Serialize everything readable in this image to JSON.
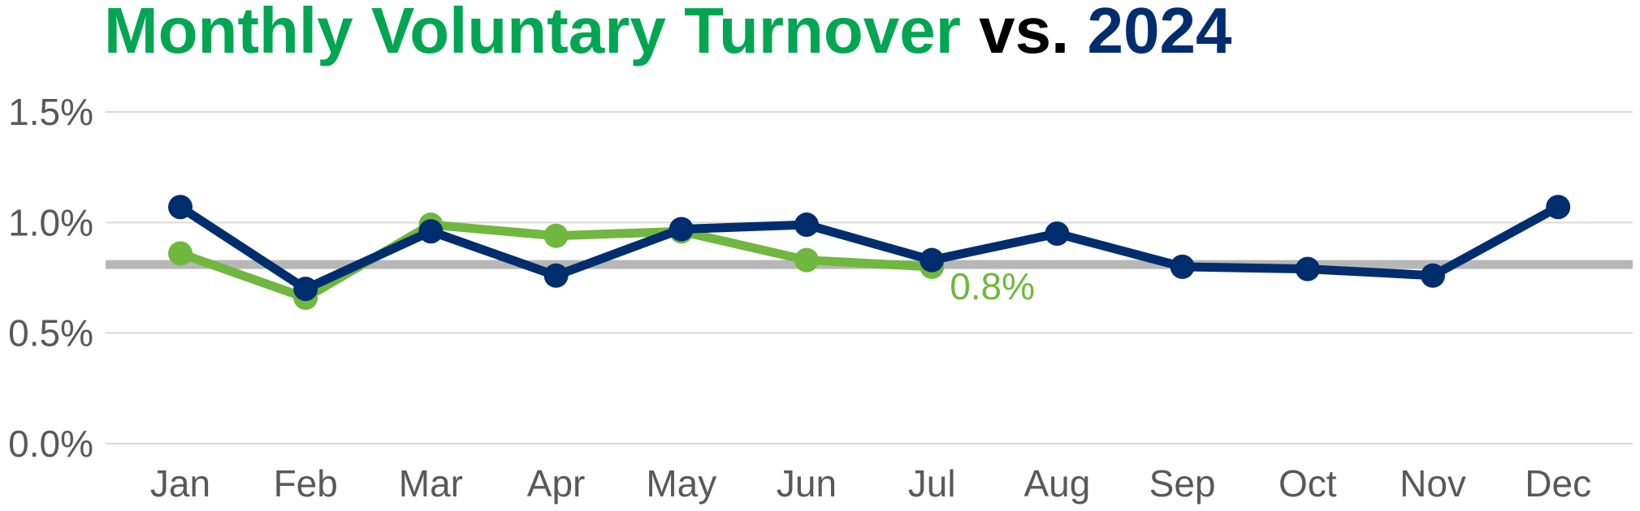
{
  "chart_data": {
    "type": "line",
    "title": {
      "part1": "Monthly Voluntary Turnover",
      "part2": " vs. ",
      "part3": "2024"
    },
    "categories": [
      "Jan",
      "Feb",
      "Mar",
      "Apr",
      "May",
      "Jun",
      "Jul",
      "Aug",
      "Sep",
      "Oct",
      "Nov",
      "Dec"
    ],
    "y_ticks": [
      "0.0%",
      "0.5%",
      "1.0%",
      "1.5%"
    ],
    "ylim": [
      0,
      1.5
    ],
    "y_tick_values": [
      0,
      0.5,
      1.0,
      1.5
    ],
    "grid": true,
    "reference_line": {
      "value": 0.81,
      "color": "#b7b7b7"
    },
    "series": [
      {
        "color": "#002d6e",
        "values": [
          1.07,
          0.7,
          0.96,
          0.76,
          0.97,
          0.99,
          0.83,
          0.95,
          0.8,
          0.79,
          0.76,
          1.07
        ]
      },
      {
        "color": "#70b73f",
        "values": [
          0.86,
          0.66,
          0.99,
          0.94,
          0.96,
          0.83,
          0.8,
          null,
          null,
          null,
          null,
          null
        ]
      }
    ],
    "annotation": {
      "text": "0.8%",
      "category_index": 6,
      "color": "#70b73f"
    }
  },
  "colors": {
    "title_green": "#00a651",
    "title_black": "#000000",
    "title_navy": "#002d6e",
    "grid": "#d9d9d9",
    "tick_text": "#595959"
  }
}
